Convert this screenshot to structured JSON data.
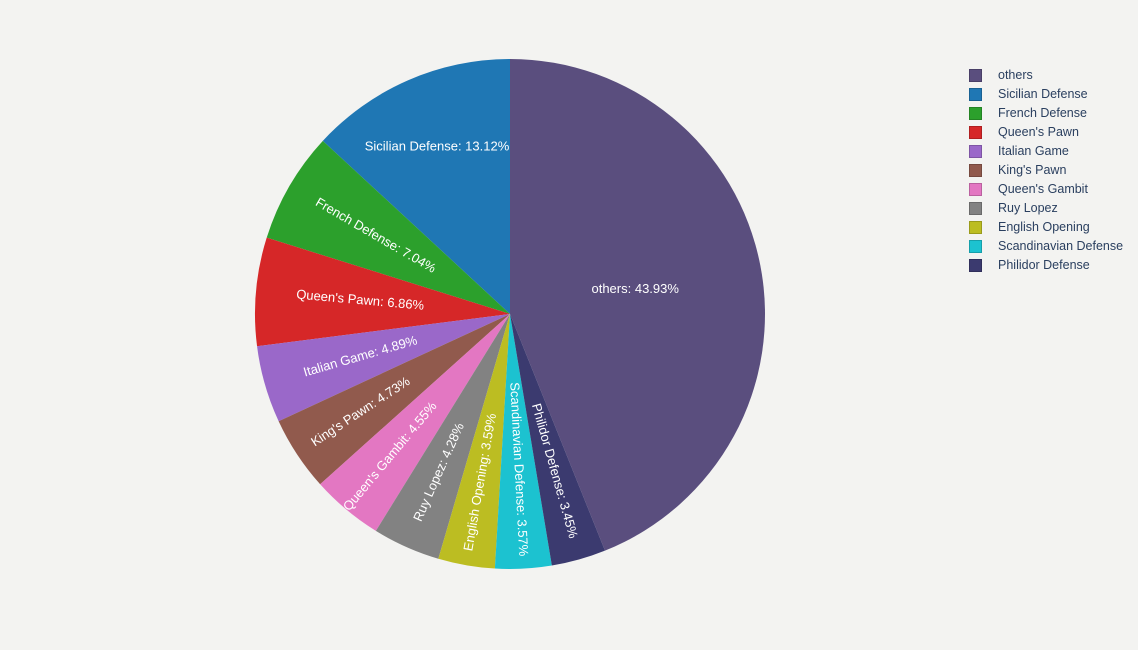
{
  "figure": {
    "background_color": "#f3f3f1",
    "slice_label_color": "#ffffff",
    "legend_text_color": "#2a3f5f"
  },
  "chart_data": {
    "type": "pie",
    "title": "",
    "legend_position": "right",
    "start_angle": "12 o'clock",
    "largest_slice_direction": "clockwise",
    "label_format": "{label}: {percent}%",
    "slices": [
      {
        "label": "others",
        "value": 43.93,
        "color": "#5a4e7e"
      },
      {
        "label": "Sicilian Defense",
        "value": 13.12,
        "color": "#1f77b4"
      },
      {
        "label": "French Defense",
        "value": 7.04,
        "color": "#2ca02c"
      },
      {
        "label": "Queen's Pawn",
        "value": 6.86,
        "color": "#d62728"
      },
      {
        "label": "Italian Game",
        "value": 4.89,
        "color": "#9a68c9"
      },
      {
        "label": "King's Pawn",
        "value": 4.73,
        "color": "#915a4d"
      },
      {
        "label": "Queen's Gambit",
        "value": 4.55,
        "color": "#e377c2"
      },
      {
        "label": "Ruy Lopez",
        "value": 4.28,
        "color": "#828282"
      },
      {
        "label": "English Opening",
        "value": 3.59,
        "color": "#bcbd22"
      },
      {
        "label": "Scandinavian Defense",
        "value": 3.57,
        "color": "#1cc2d0"
      },
      {
        "label": "Philidor Defense",
        "value": 3.45,
        "color": "#3b3a6f"
      }
    ]
  }
}
